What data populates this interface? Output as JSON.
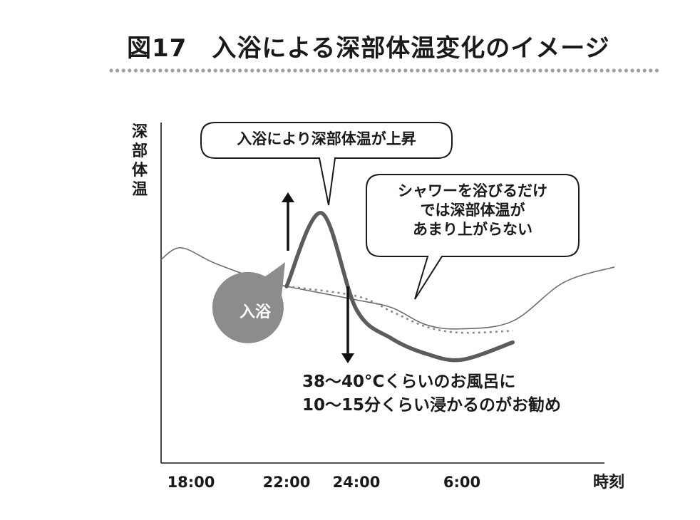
{
  "header": {
    "title": "図17　入浴による深部体温変化のイメージ"
  },
  "chart_data": {
    "type": "line",
    "title": "図17　入浴による深部体温変化のイメージ",
    "xlabel": "時刻",
    "ylabel": "深部体温",
    "x_ticks": [
      "18:00",
      "22:00",
      "24:00",
      "6:00"
    ],
    "series": [
      {
        "kind": "baseline",
        "values": [
          [
            15,
            52
          ],
          [
            17,
            58
          ],
          [
            19,
            50
          ],
          [
            21,
            41
          ],
          [
            22,
            38
          ],
          [
            24,
            31
          ],
          [
            2,
            27
          ],
          [
            4,
            18
          ],
          [
            6,
            16
          ],
          [
            8,
            20
          ],
          [
            10,
            40
          ],
          [
            12,
            48
          ]
        ]
      },
      {
        "kind": "bath",
        "values": [
          [
            22,
            38
          ],
          [
            23,
            76
          ],
          [
            24,
            26
          ],
          [
            2,
            11
          ],
          [
            4,
            3
          ],
          [
            6,
            0
          ],
          [
            8,
            9
          ]
        ]
      },
      {
        "kind": "shower",
        "values": [
          [
            22,
            38
          ],
          [
            24,
            33
          ],
          [
            2,
            25
          ],
          [
            4,
            17
          ],
          [
            6,
            14
          ],
          [
            8,
            15
          ]
        ]
      }
    ],
    "annotations": {
      "peak": "入浴により深部体温が上昇",
      "shower": [
        "シャワーを浴びるだけ",
        "では深部体温が",
        "あまり上がらない"
      ],
      "bath_marker": "入浴",
      "recommend": [
        "38～40°Cくらいのお風呂に",
        "10～15分くらい浸かるのがお勧め"
      ]
    },
    "colors": {
      "axis": "#1a1a1a",
      "baseline": "#6e6e6e",
      "bath": "#5c5c5c",
      "shower": "#8a8a8a",
      "marker": "#8c8c8c",
      "dots": "#a0a0a0"
    }
  }
}
